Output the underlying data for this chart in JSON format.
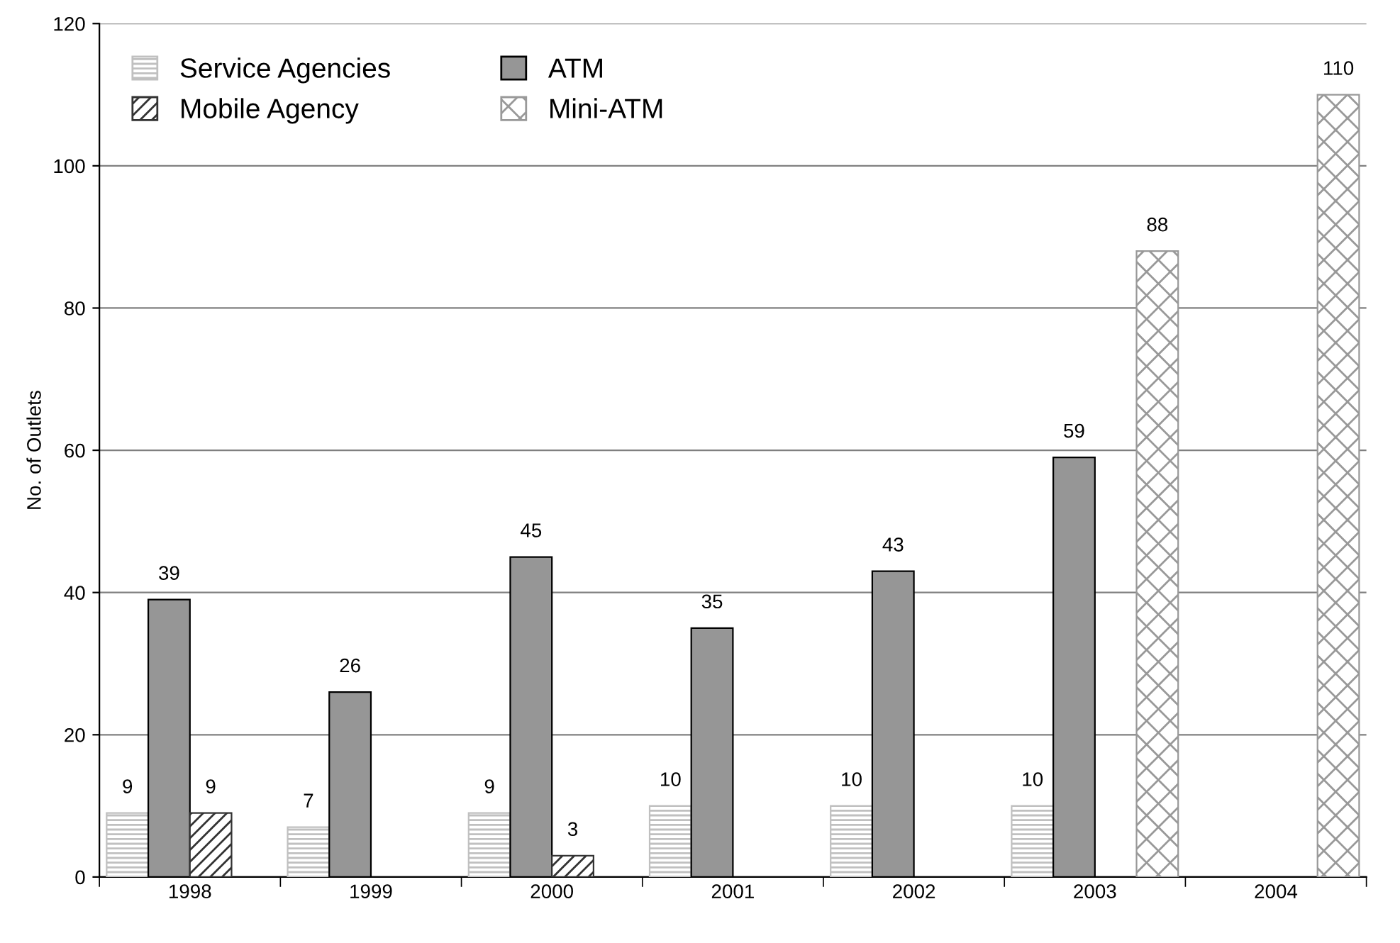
{
  "chart_data": {
    "type": "bar",
    "ylabel": "No. of Outlets",
    "categories": [
      "1998",
      "1999",
      "2000",
      "2001",
      "2002",
      "2003",
      "2004"
    ],
    "series": [
      {
        "name": "Service Agencies",
        "color": "#c0c0c0",
        "values": [
          9,
          7,
          9,
          10,
          10,
          10,
          null
        ]
      },
      {
        "name": "ATM",
        "color": "#969696",
        "values": [
          39,
          26,
          45,
          35,
          43,
          59,
          null
        ]
      },
      {
        "name": "Mobile Agency",
        "color": "#333333",
        "values": [
          9,
          null,
          3,
          null,
          null,
          null,
          null
        ]
      },
      {
        "name": "Mini-ATM",
        "color": "#999999",
        "values": [
          null,
          null,
          null,
          null,
          null,
          88,
          110
        ]
      }
    ],
    "ylim": [
      0,
      120
    ],
    "yticks": [
      0,
      20,
      40,
      60,
      80,
      100,
      120
    ],
    "grid": "y",
    "legend": "top left",
    "data_labels": true
  }
}
